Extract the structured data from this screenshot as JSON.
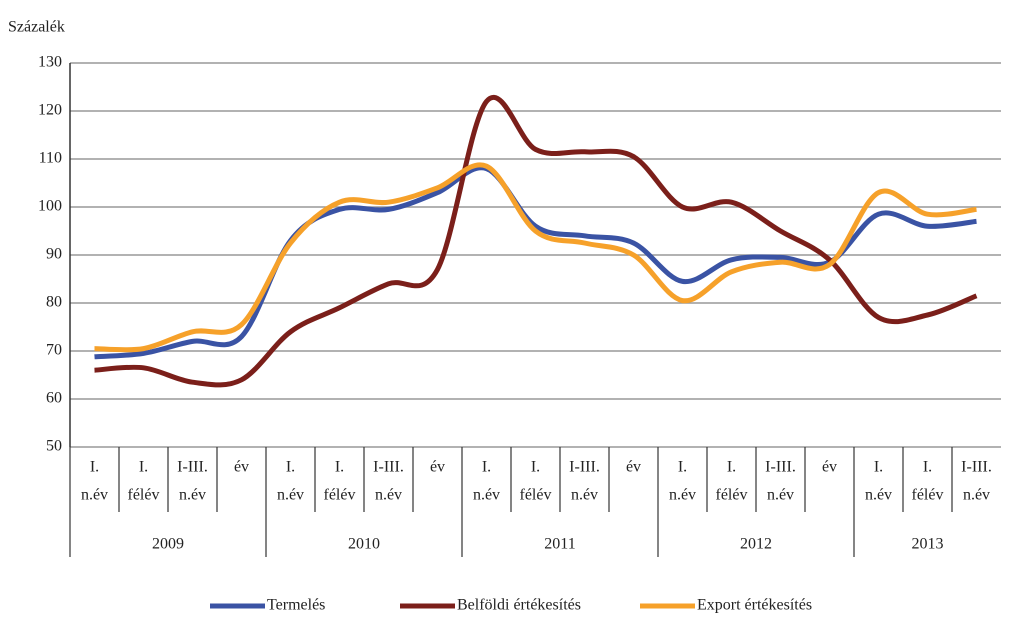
{
  "chart_data": {
    "type": "line",
    "y_label": "Százalék",
    "categories": [
      [
        "I.",
        "n.év"
      ],
      [
        "I.",
        "félév"
      ],
      [
        "I-III.",
        "n.év"
      ],
      [
        "év"
      ],
      [
        "I.",
        "n.év"
      ],
      [
        "I.",
        "félév"
      ],
      [
        "I-III.",
        "n.év"
      ],
      [
        "év"
      ],
      [
        "I.",
        "n.év"
      ],
      [
        "I.",
        "félév"
      ],
      [
        "I-III.",
        "n.év"
      ],
      [
        "év"
      ],
      [
        "I.",
        "n.év"
      ],
      [
        "I.",
        "félév"
      ],
      [
        "I-III.",
        "n.év"
      ],
      [
        "év"
      ],
      [
        "I.",
        "n.év"
      ],
      [
        "I.",
        "félév"
      ],
      [
        "I-III.",
        "n.év"
      ]
    ],
    "x_groups": [
      "2009",
      "2010",
      "2011",
      "2012",
      "2013"
    ],
    "series": [
      {
        "name": "Termelés",
        "color": "#3a53a4",
        "values": [
          68.8,
          69.5,
          72,
          73,
          93,
          99.5,
          99.5,
          103,
          108,
          96,
          94,
          92.5,
          84.5,
          89,
          89.5,
          88.5,
          98.5,
          96,
          97
        ]
      },
      {
        "name": "Belföldi értékesítés",
        "color": "#7b1f1a",
        "values": [
          66,
          66.5,
          63.5,
          64,
          74,
          79,
          84,
          87,
          122,
          112,
          111.5,
          110.5,
          100,
          101,
          95,
          89,
          77,
          77.5,
          81.5
        ]
      },
      {
        "name": "Export értékesítés",
        "color": "#f6a12a",
        "values": [
          70.5,
          70.5,
          74,
          75.5,
          92.5,
          101,
          101,
          104,
          108.5,
          95,
          92.5,
          90,
          80.5,
          86.5,
          88.5,
          88,
          103,
          98.5,
          99.5
        ]
      }
    ],
    "ylim": [
      50,
      130
    ],
    "yticks": [
      50,
      60,
      70,
      80,
      90,
      100,
      110,
      120,
      130
    ],
    "grid": true
  }
}
